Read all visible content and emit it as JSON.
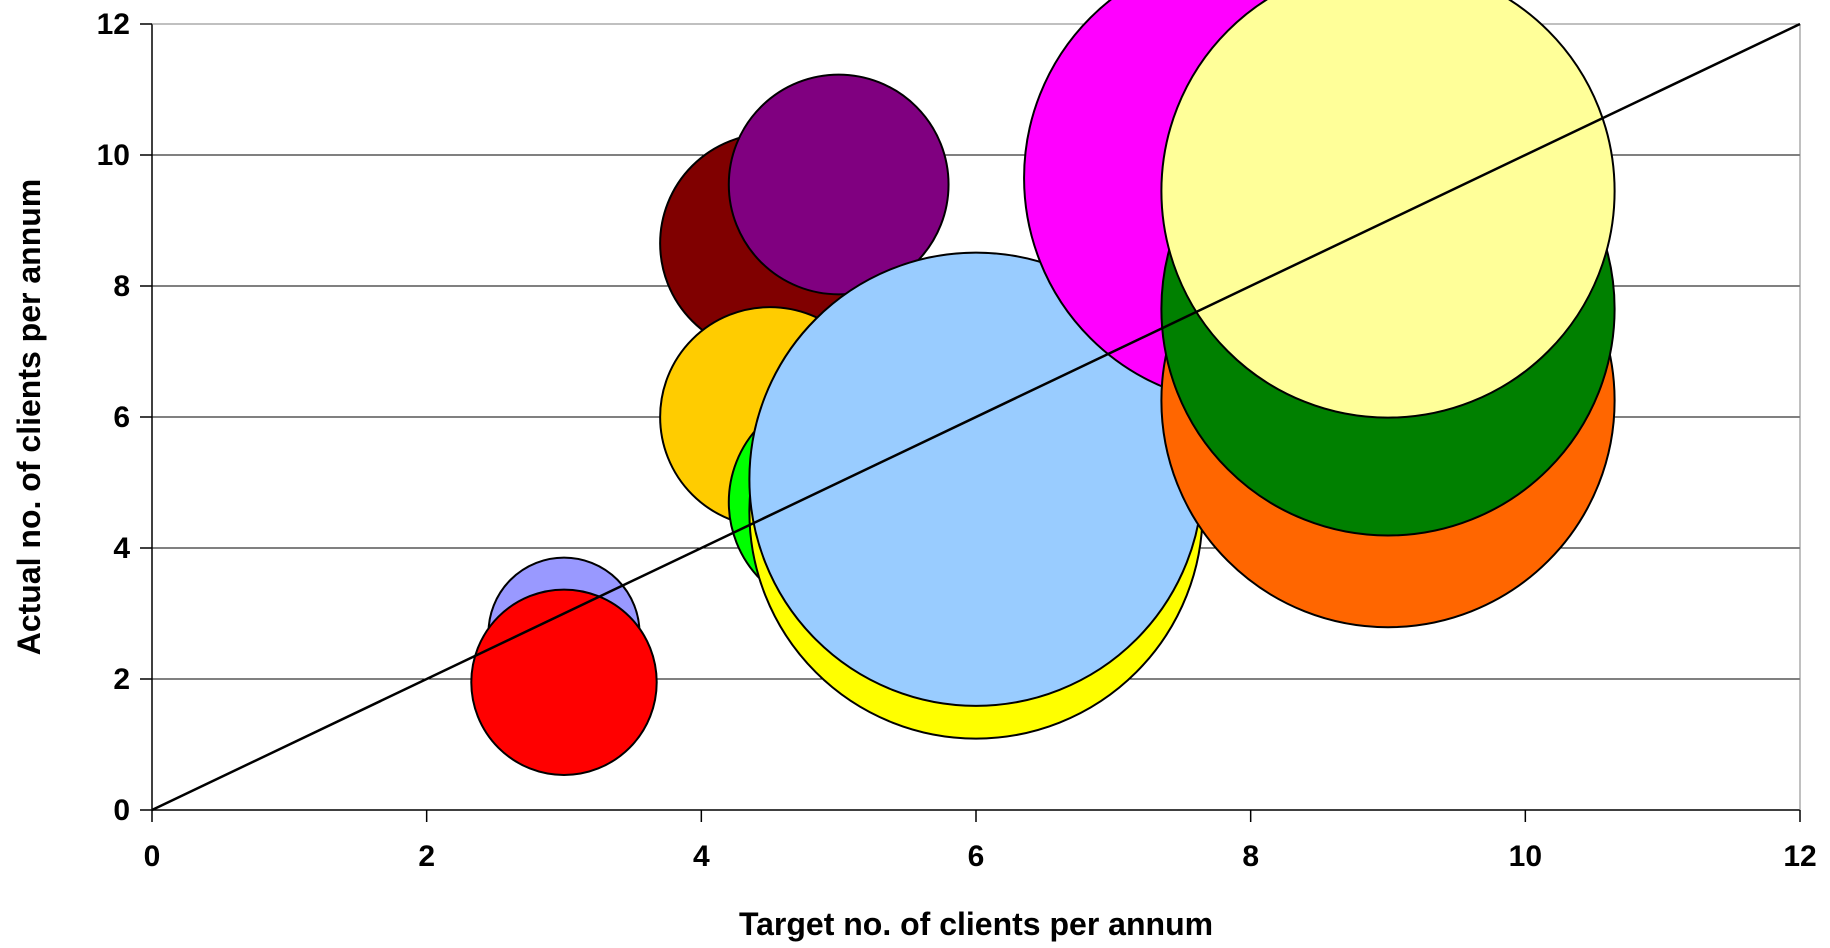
{
  "chart_data": {
    "type": "bubble",
    "title": "",
    "xlabel": "Target no. of clients per annum",
    "ylabel": "Actual no. of clients per annum",
    "xlim": [
      0,
      12
    ],
    "ylim": [
      0,
      12
    ],
    "xticks": [
      "0",
      "2",
      "4",
      "6",
      "8",
      "10",
      "12"
    ],
    "yticks": [
      "0",
      "2",
      "4",
      "6",
      "8",
      "10",
      "12"
    ],
    "grid": "horizontal",
    "legend": "none",
    "reference_line": {
      "from": [
        0,
        0
      ],
      "to": [
        12,
        12
      ],
      "color": "#000000"
    },
    "points": [
      {
        "x": 3.0,
        "y": 2.7,
        "size": 1.1,
        "color": "#9999FF"
      },
      {
        "x": 3.0,
        "y": 1.95,
        "size": 1.35,
        "color": "#FF0000"
      },
      {
        "x": 4.5,
        "y": 8.65,
        "size": 1.6,
        "color": "#800000"
      },
      {
        "x": 5.0,
        "y": 9.55,
        "size": 1.6,
        "color": "#800080"
      },
      {
        "x": 4.5,
        "y": 6.0,
        "size": 1.6,
        "color": "#FFCC00"
      },
      {
        "x": 5.0,
        "y": 4.7,
        "size": 1.6,
        "color": "#00FF00"
      },
      {
        "x": 6.0,
        "y": 4.55,
        "size": 3.3,
        "color": "#FFFF00"
      },
      {
        "x": 6.0,
        "y": 5.05,
        "size": 3.3,
        "color": "#99CCFF"
      },
      {
        "x": 8.0,
        "y": 9.65,
        "size": 3.3,
        "color": "#FF00FF"
      },
      {
        "x": 9.0,
        "y": 6.25,
        "size": 3.3,
        "color": "#FF6600"
      },
      {
        "x": 9.0,
        "y": 7.65,
        "size": 3.3,
        "color": "#008000"
      },
      {
        "x": 9.0,
        "y": 9.45,
        "size": 3.3,
        "color": "#FFFF99"
      }
    ]
  }
}
